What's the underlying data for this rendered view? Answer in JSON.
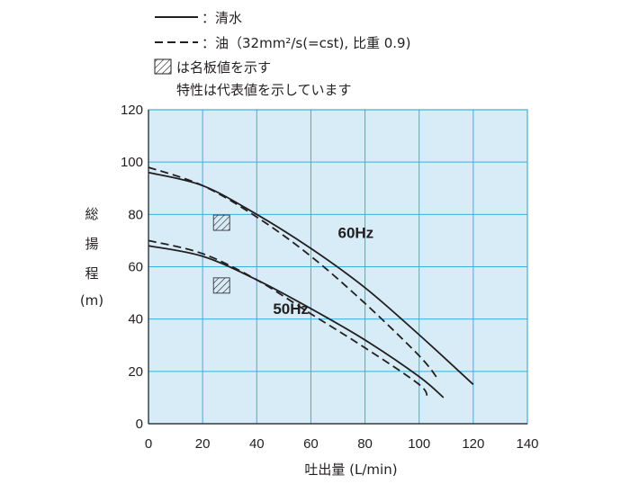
{
  "chart_data": {
    "type": "line",
    "xlabel": "吐出量 (L/min)",
    "ylabel_chars": [
      "総",
      "揚",
      "程",
      "(m)"
    ],
    "xlim": [
      0,
      140
    ],
    "ylim": [
      0,
      120
    ],
    "x_ticks": [
      0,
      20,
      40,
      60,
      80,
      100,
      120,
      140
    ],
    "y_ticks": [
      0,
      20,
      40,
      60,
      80,
      100,
      120
    ],
    "grid": true,
    "background_color": "#d7ecf7",
    "grid_color": "#38b0df",
    "line_color": "#231f20",
    "legend": {
      "placement": "top-left",
      "solid_label": "：清水",
      "dashed_label": "：油（32mm²/s(=cst), 比重 0.9)",
      "hatch_label": "は名板値を示す",
      "note": "特性は代表値を示しています"
    },
    "series": [
      {
        "name": "60Hz",
        "style": "solid",
        "x": [
          0,
          20,
          40,
          60,
          80,
          100,
          120
        ],
        "y": [
          96,
          91,
          80,
          67,
          52,
          34,
          15
        ]
      },
      {
        "name": "60Hz",
        "style": "dashed",
        "x": [
          0,
          20,
          40,
          60,
          80,
          100,
          107
        ],
        "y": [
          98,
          91,
          79,
          64,
          46,
          26,
          17
        ]
      },
      {
        "name": "50Hz",
        "style": "solid",
        "x": [
          0,
          20,
          40,
          60,
          80,
          100,
          109
        ],
        "y": [
          68,
          64,
          55,
          44,
          32,
          18,
          10
        ]
      },
      {
        "name": "50Hz",
        "style": "dashed",
        "x": [
          0,
          20,
          40,
          60,
          80,
          100,
          103
        ],
        "y": [
          70,
          65,
          55,
          42,
          29,
          15,
          10
        ]
      }
    ],
    "curve_labels": [
      {
        "text": "60Hz",
        "x": 70,
        "y": 71
      },
      {
        "text": "50Hz",
        "x": 46,
        "y": 42
      }
    ],
    "rated_points": [
      {
        "x": 27,
        "y": 77
      },
      {
        "x": 27,
        "y": 53
      }
    ]
  }
}
